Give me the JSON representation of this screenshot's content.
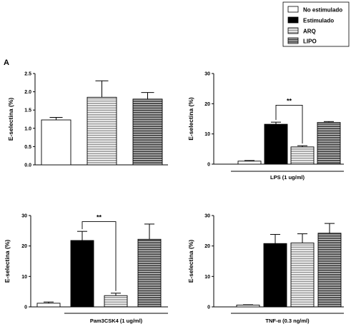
{
  "figure": {
    "panel_letter": "A",
    "legend": [
      {
        "label": "No estimulado",
        "pattern": "white"
      },
      {
        "label": "Estimulado",
        "pattern": "black"
      },
      {
        "label": "ARQ",
        "pattern": "stripe-light"
      },
      {
        "label": "LIPO",
        "pattern": "stripe-dark"
      }
    ],
    "colors": {
      "black": "#000000",
      "stripe_light": "#9a9a9a",
      "stripe_dark": "#4a4a4a"
    }
  },
  "chart_data": [
    {
      "type": "bar",
      "ylabel": "E-selectina (%)",
      "xlabel": "",
      "ylim": [
        0,
        2.5
      ],
      "yticks": [
        "0.0",
        "0.5",
        "1.0",
        "1.5",
        "2.0",
        "2.5"
      ],
      "bars": [
        {
          "pattern": "white",
          "value": 1.23,
          "error": 0.07
        },
        {
          "pattern": "stripe-light",
          "value": 1.85,
          "error": 0.45
        },
        {
          "pattern": "stripe-dark",
          "value": 1.8,
          "error": 0.18
        }
      ],
      "significance": []
    },
    {
      "type": "bar",
      "ylabel": "E-selectina (%)",
      "xlabel": "LPS (1 ug/ml)",
      "ylim": [
        0,
        30
      ],
      "yticks": [
        "0",
        "10",
        "20",
        "30"
      ],
      "bars": [
        {
          "pattern": "white",
          "value": 1.0,
          "error": 0.2
        },
        {
          "pattern": "black",
          "value": 13.2,
          "error": 0.7
        },
        {
          "pattern": "stripe-light",
          "value": 5.7,
          "error": 0.4
        },
        {
          "pattern": "stripe-dark",
          "value": 13.8,
          "error": 0.3
        }
      ],
      "significance": [
        {
          "from": 1,
          "to": 2,
          "label": "**",
          "y": 19.5
        }
      ]
    },
    {
      "type": "bar",
      "ylabel": "E-selectina (%)",
      "xlabel": "Pam3CSK4 (1 ug/ml)",
      "ylim": [
        0,
        30
      ],
      "yticks": [
        "0",
        "10",
        "20",
        "30"
      ],
      "bars": [
        {
          "pattern": "white",
          "value": 1.2,
          "error": 0.4
        },
        {
          "pattern": "black",
          "value": 21.8,
          "error": 3.0
        },
        {
          "pattern": "stripe-light",
          "value": 3.7,
          "error": 0.8
        },
        {
          "pattern": "stripe-dark",
          "value": 22.2,
          "error": 5.0
        }
      ],
      "significance": [
        {
          "from": 1,
          "to": 2,
          "label": "**",
          "y": 28.0
        }
      ]
    },
    {
      "type": "bar",
      "ylabel": "E-selectina (%)",
      "xlabel": "TNF-α (0.3 ng/ml)",
      "ylim": [
        0,
        30
      ],
      "yticks": [
        "0",
        "10",
        "20",
        "30"
      ],
      "bars": [
        {
          "pattern": "white",
          "value": 0.6,
          "error": 0.1
        },
        {
          "pattern": "black",
          "value": 20.8,
          "error": 3.0
        },
        {
          "pattern": "stripe-light",
          "value": 21.0,
          "error": 3.0
        },
        {
          "pattern": "stripe-dark",
          "value": 24.2,
          "error": 3.2
        }
      ],
      "significance": []
    }
  ]
}
